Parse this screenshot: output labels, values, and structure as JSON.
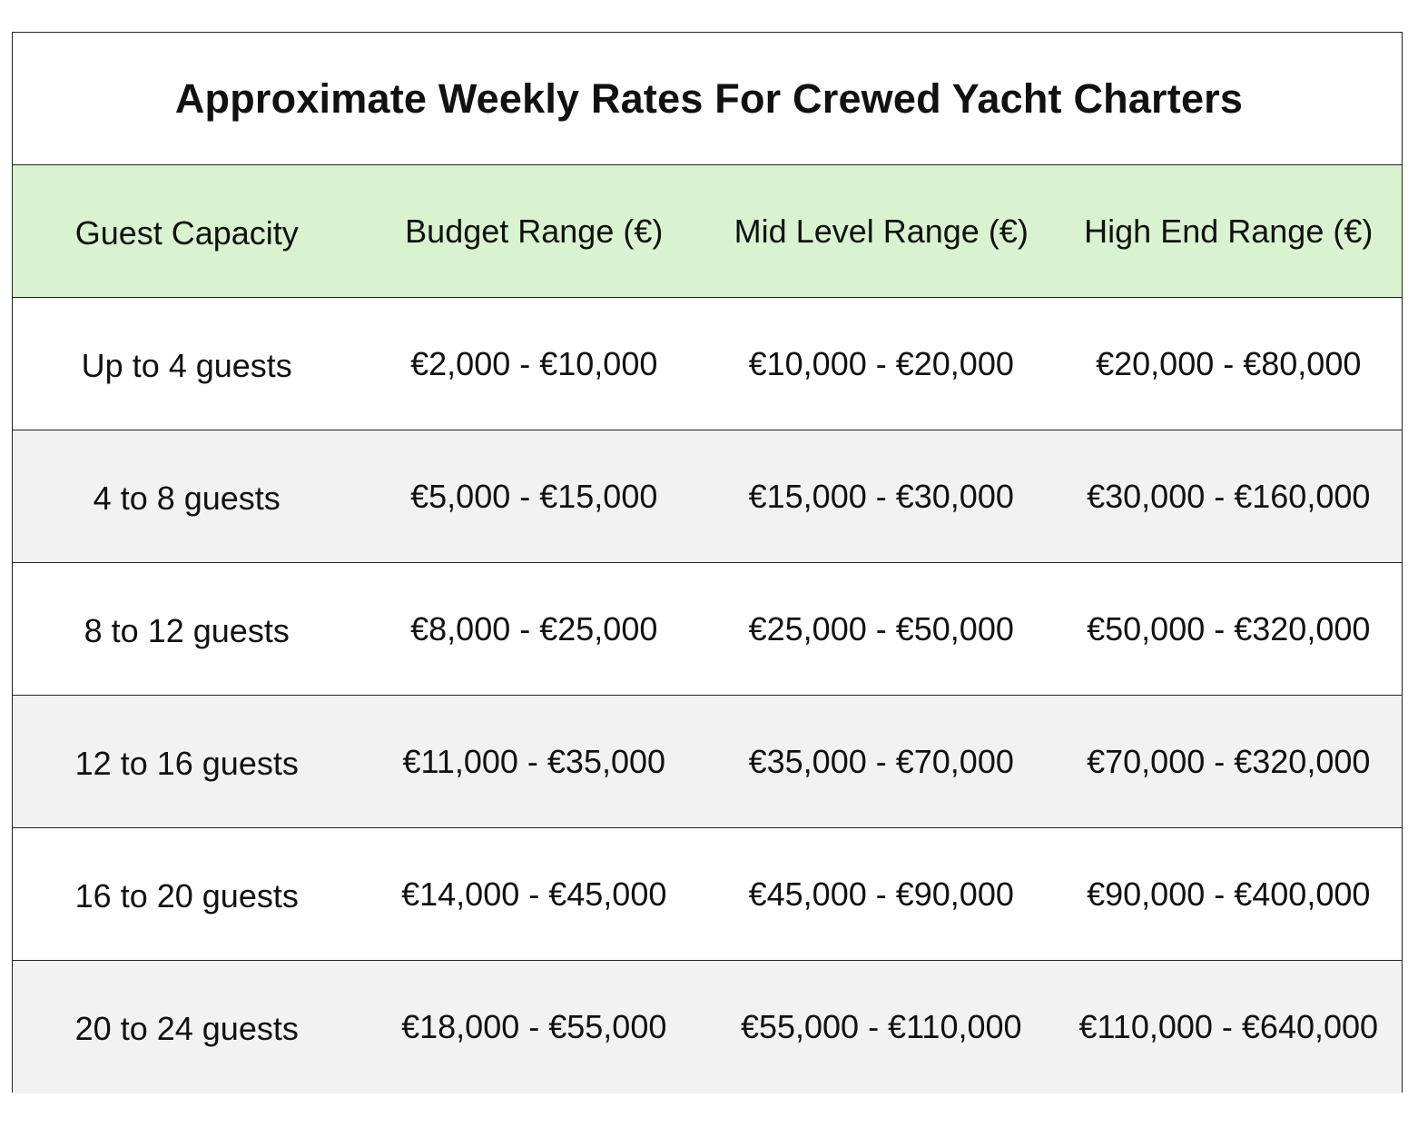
{
  "table": {
    "title": "Approximate Weekly Rates For Crewed Yacht Charters",
    "headers": [
      "Guest Capacity",
      "Budget Range (€)",
      "Mid Level Range (€)",
      "High End Range (€)"
    ],
    "rows": [
      [
        "Up to 4 guests",
        "€2,000 - €10,000",
        "€10,000 - €20,000",
        "€20,000 - €80,000"
      ],
      [
        "4 to 8 guests",
        "€5,000 - €15,000",
        "€15,000 - €30,000",
        "€30,000 - €160,000"
      ],
      [
        "8 to 12 guests",
        "€8,000 - €25,000",
        "€25,000 - €50,000",
        "€50,000 - €320,000"
      ],
      [
        "12 to 16 guests",
        "€11,000 - €35,000",
        "€35,000 - €70,000",
        "€70,000 - €320,000"
      ],
      [
        "16 to 20 guests",
        "€14,000 - €45,000",
        "€45,000 - €90,000",
        "€90,000 - €400,000"
      ],
      [
        "20 to 24 guests",
        "€18,000 - €55,000",
        "€55,000 - €110,000",
        "€110,000 - €640,000"
      ]
    ]
  },
  "colors": {
    "header_fill": "#d9f2d0",
    "shaded_row_fill": "#f2f2f2",
    "border": "#222222"
  }
}
